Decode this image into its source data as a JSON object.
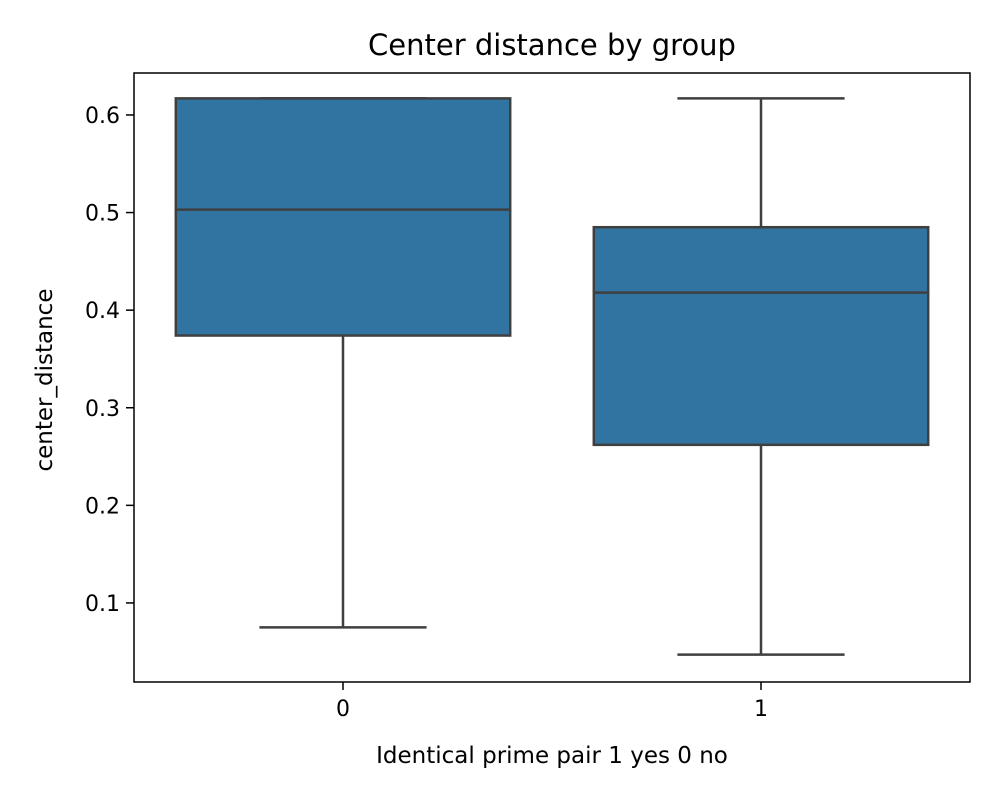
{
  "chart_data": {
    "type": "boxplot",
    "title": "Center distance by group",
    "xlabel": "Identical prime pair 1 yes 0 no",
    "ylabel": "center_distance",
    "categories": [
      "0",
      "1"
    ],
    "boxes": [
      {
        "category": "0",
        "whisker_low": 0.075,
        "q1": 0.374,
        "median": 0.503,
        "q3": 0.617,
        "whisker_high": 0.617
      },
      {
        "category": "1",
        "whisker_low": 0.047,
        "q1": 0.262,
        "median": 0.418,
        "q3": 0.485,
        "whisker_high": 0.617
      }
    ],
    "yticks": [
      0.1,
      0.2,
      0.3,
      0.4,
      0.5,
      0.6
    ],
    "ytick_labels": [
      "0.1",
      "0.2",
      "0.3",
      "0.4",
      "0.5",
      "0.6"
    ],
    "ylim": [
      0.019,
      0.643
    ],
    "grid": false,
    "legend": "none",
    "colors": {
      "box_fill": "#3274a1",
      "line": "#3f3f3f",
      "axes": "#000000",
      "background": "#ffffff"
    }
  }
}
